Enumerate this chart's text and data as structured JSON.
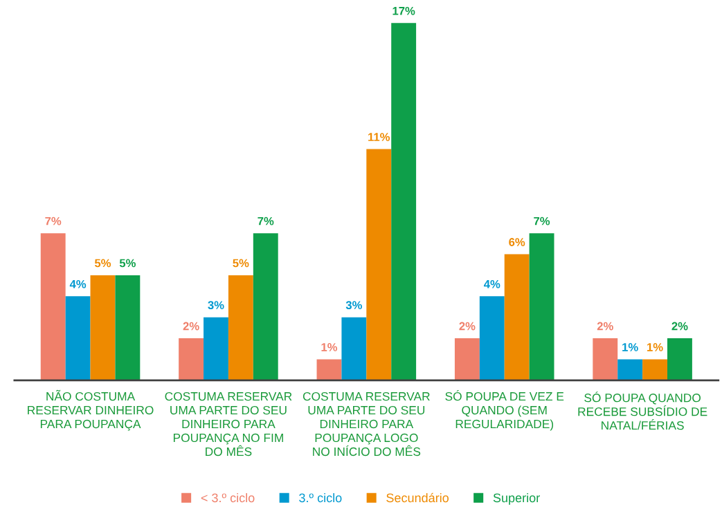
{
  "chart_data": {
    "type": "bar",
    "categories": [
      "NÃO COSTUMA\nRESERVAR DINHEIRO\nPARA POUPANÇA",
      "COSTUMA RESERVAR\nUMA PARTE DO SEU\nDINHEIRO PARA\nPOUPANÇA NO FIM\nDO MÊS",
      "COSTUMA RESERVAR\nUMA PARTE DO SEU\nDINHEIRO PARA\nPOUPANÇA LOGO\nNO INÍCIO DO MÊS",
      "SÓ POUPA DE VEZ E\nQUANDO (SEM\nREGULARIDADE)",
      "SÓ POUPA QUANDO\nRECEBE SUBSÍDIO DE\nNATAL/FÉRIAS"
    ],
    "series": [
      {
        "name": "< 3.º ciclo",
        "color": "#ef7f6a",
        "values": [
          7,
          2,
          1,
          2,
          2
        ],
        "value_labels": [
          "7%",
          "2%",
          "1%",
          "2%",
          "2%"
        ]
      },
      {
        "name": "3.º ciclo",
        "color": "#0099d0",
        "values": [
          4,
          3,
          3,
          4,
          1
        ],
        "value_labels": [
          "4%",
          "3%",
          "3%",
          "4%",
          "1%"
        ]
      },
      {
        "name": "Secundário",
        "color": "#ee8a00",
        "values": [
          5,
          5,
          11,
          6,
          1
        ],
        "value_labels": [
          "5%",
          "5%",
          "11%",
          "6%",
          "1%"
        ]
      },
      {
        "name": "Superior",
        "color": "#0e9f4a",
        "values": [
          5,
          7,
          17,
          7,
          2
        ],
        "value_labels": [
          "5%",
          "7%",
          "17%",
          "7%",
          "2%"
        ]
      }
    ],
    "legend": "bottom",
    "grid": false
  }
}
